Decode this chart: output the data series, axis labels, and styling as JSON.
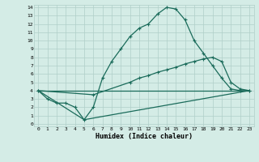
{
  "xlabel": "Humidex (Indice chaleur)",
  "background_color": "#d4ece6",
  "grid_color": "#b0cfc8",
  "line_color": "#1a6b5a",
  "xlim": [
    -0.5,
    23.5
  ],
  "ylim": [
    -0.3,
    14.3
  ],
  "xticks": [
    0,
    1,
    2,
    3,
    4,
    5,
    6,
    7,
    8,
    9,
    10,
    11,
    12,
    13,
    14,
    15,
    16,
    17,
    18,
    19,
    20,
    21,
    22,
    23
  ],
  "yticks": [
    0,
    1,
    2,
    3,
    4,
    5,
    6,
    7,
    8,
    9,
    10,
    11,
    12,
    13,
    14
  ],
  "curve1_x": [
    0,
    1,
    2,
    3,
    4,
    5,
    6,
    7,
    8,
    9,
    10,
    11,
    12,
    13,
    14,
    15,
    16,
    17,
    18,
    19,
    20,
    21,
    22,
    23
  ],
  "curve1_y": [
    4.0,
    3.0,
    2.5,
    2.5,
    2.0,
    0.5,
    2.0,
    5.5,
    7.5,
    9.0,
    10.5,
    11.5,
    12.0,
    13.2,
    14.0,
    13.8,
    12.5,
    10.0,
    8.5,
    7.0,
    5.5,
    4.2,
    4.0,
    4.0
  ],
  "curve2_x": [
    0,
    6,
    10,
    11,
    12,
    13,
    14,
    15,
    16,
    17,
    18,
    19,
    20,
    21,
    22,
    23
  ],
  "curve2_y": [
    4.0,
    3.5,
    5.0,
    5.5,
    5.8,
    6.2,
    6.5,
    6.8,
    7.2,
    7.5,
    7.8,
    8.0,
    7.5,
    5.0,
    4.2,
    4.0
  ],
  "curve3_x": [
    0,
    23
  ],
  "curve3_y": [
    4.0,
    4.0
  ],
  "curve4_x": [
    0,
    5,
    23
  ],
  "curve4_y": [
    4.0,
    0.5,
    4.0
  ],
  "lw": 0.9,
  "ms": 3.5
}
